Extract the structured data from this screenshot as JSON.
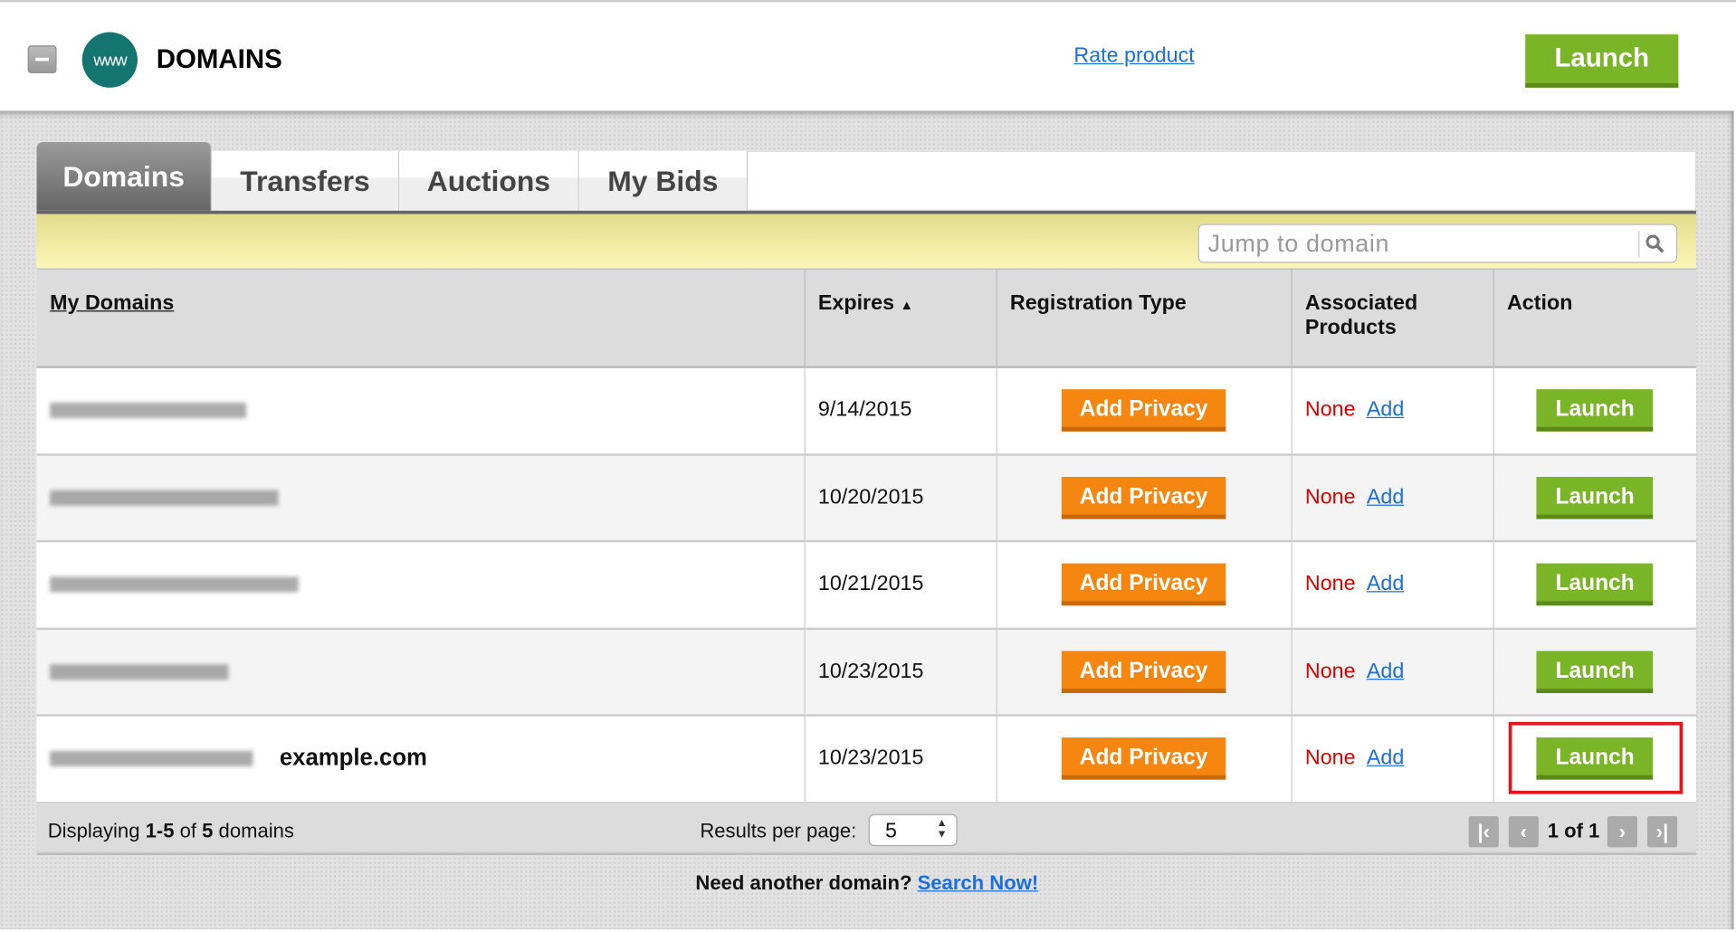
{
  "header": {
    "title": "DOMAINS",
    "logo_text": "www",
    "rate_link": "Rate product",
    "launch_label": "Launch"
  },
  "tabs": [
    {
      "label": "Domains",
      "active": true
    },
    {
      "label": "Transfers"
    },
    {
      "label": "Auctions"
    },
    {
      "label": "My Bids"
    }
  ],
  "search": {
    "placeholder": "Jump to domain",
    "value": ""
  },
  "table": {
    "columns": [
      "My Domains",
      "Expires",
      "Registration Type",
      "Associated Products",
      "Action"
    ],
    "sort_indicator": "▲",
    "rows": [
      {
        "domain": "",
        "expires": "9/14/2015",
        "reg_button": "Add Privacy",
        "products": "None",
        "add": "Add",
        "action": "Launch"
      },
      {
        "domain": "",
        "expires": "10/20/2015",
        "reg_button": "Add Privacy",
        "products": "None",
        "add": "Add",
        "action": "Launch"
      },
      {
        "domain": "",
        "expires": "10/21/2015",
        "reg_button": "Add Privacy",
        "products": "None",
        "add": "Add",
        "action": "Launch"
      },
      {
        "domain": "",
        "expires": "10/23/2015",
        "reg_button": "Add Privacy",
        "products": "None",
        "add": "Add",
        "action": "Launch"
      },
      {
        "domain": "example.com",
        "expires": "10/23/2015",
        "reg_button": "Add Privacy",
        "products": "None",
        "add": "Add",
        "action": "Launch"
      }
    ]
  },
  "footer": {
    "displaying_prefix": "Displaying ",
    "range": "1-5",
    "of": " of ",
    "total": "5",
    "suffix": " domains",
    "results_per_page_label": "Results per page:",
    "results_per_page": "5",
    "page_info": "1 of 1"
  },
  "bottom": {
    "prompt": "Need another domain? ",
    "link": "Search Now!"
  },
  "colors": {
    "launch_green": "#7ab427",
    "privacy_orange": "#f5860f",
    "none_red": "#dd0000",
    "link_blue": "#1a6ee0",
    "highlight": "#e8141b"
  }
}
